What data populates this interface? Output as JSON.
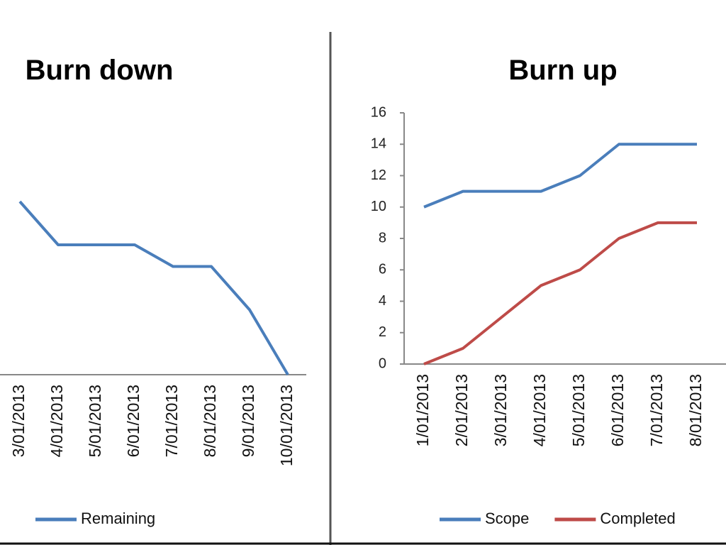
{
  "chart_data": [
    {
      "type": "line",
      "title": "Burn down",
      "categories": [
        "3/01/2013",
        "4/01/2013",
        "5/01/2013",
        "6/01/2013",
        "7/01/2013",
        "8/01/2013",
        "9/01/2013",
        "10/01/2013"
      ],
      "series": [
        {
          "name": "Remaining",
          "color": "#4a7ebb",
          "values": [
            8,
            6,
            6,
            6,
            5,
            5,
            3,
            0
          ]
        }
      ],
      "ylim": [
        0,
        16
      ]
    },
    {
      "type": "line",
      "title": "Burn up",
      "categories": [
        "1/01/2013",
        "2/01/2013",
        "3/01/2013",
        "4/01/2013",
        "5/01/2013",
        "6/01/2013",
        "7/01/2013",
        "8/01/2013"
      ],
      "series": [
        {
          "name": "Scope",
          "color": "#4a7ebb",
          "values": [
            10,
            11,
            11,
            11,
            12,
            14,
            14,
            14
          ]
        },
        {
          "name": "Completed",
          "color": "#be4b48",
          "values": [
            0,
            1,
            3,
            5,
            6,
            8,
            9,
            9
          ]
        }
      ],
      "ylim": [
        0,
        16
      ],
      "yticks": [
        0,
        2,
        4,
        6,
        8,
        10,
        12,
        14,
        16
      ]
    }
  ]
}
